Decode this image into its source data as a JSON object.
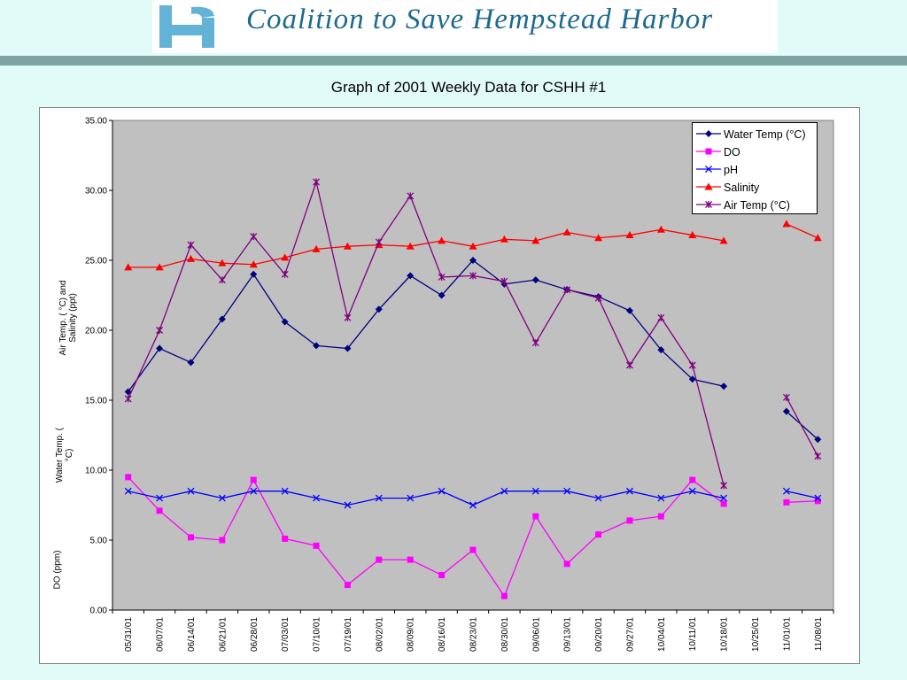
{
  "header": {
    "org_name": "Coalition to Save Hempstead Harbor",
    "logo_icon": "hempstead-h-logo-icon"
  },
  "slide": {
    "title": "Graph of 2001 Weekly Data for CSHH #1"
  },
  "chart_data": {
    "type": "line",
    "title": "",
    "ylabel_sections": [
      "Air Temp. ( °C) and Salinity (ppt)",
      "Water Temp. ( °C)",
      "DO (ppm)"
    ],
    "ylim": [
      0,
      35
    ],
    "y_ticks": [
      "0.00",
      "5.00",
      "10.00",
      "15.00",
      "20.00",
      "25.00",
      "30.00",
      "35.00"
    ],
    "categories": [
      "05/31/01",
      "06/07/01",
      "06/14/01",
      "06/21/01",
      "06/28/01",
      "07/03/01",
      "07/10/01",
      "07/19/01",
      "08/02/01",
      "08/09/01",
      "08/16/01",
      "08/23/01",
      "08/30/01",
      "09/06/01",
      "09/13/01",
      "09/20/01",
      "09/27/01",
      "10/04/01",
      "10/11/01",
      "10/18/01",
      "10/25/01",
      "11/01/01",
      "11/08/01"
    ],
    "grid": false,
    "plot_background": "#c0c0c0",
    "legend_position": "top-right",
    "series": [
      {
        "name": "Water Temp (°C)",
        "color": "#000080",
        "marker": "diamond",
        "values": [
          15.6,
          18.7,
          17.7,
          20.8,
          24.0,
          20.6,
          18.9,
          18.7,
          21.5,
          23.9,
          22.5,
          25.0,
          23.3,
          23.6,
          22.9,
          22.4,
          21.4,
          18.6,
          16.5,
          16.0,
          null,
          14.2,
          12.2
        ]
      },
      {
        "name": "DO",
        "color": "#ff00ff",
        "marker": "square",
        "values": [
          9.5,
          7.1,
          5.2,
          5.0,
          9.3,
          5.1,
          4.6,
          1.8,
          3.6,
          3.6,
          2.5,
          4.3,
          1.0,
          6.7,
          3.3,
          5.4,
          6.4,
          6.7,
          9.3,
          7.6,
          null,
          7.7,
          7.8
        ]
      },
      {
        "name": "pH",
        "color": "#0000ff",
        "marker": "x",
        "values": [
          8.5,
          8.0,
          8.5,
          8.0,
          8.5,
          8.5,
          8.0,
          7.5,
          8.0,
          8.0,
          8.5,
          7.5,
          8.5,
          8.5,
          8.5,
          8.0,
          8.5,
          8.0,
          8.5,
          8.0,
          null,
          8.5,
          8.0
        ]
      },
      {
        "name": "Salinity",
        "color": "#ff0000",
        "marker": "triangle",
        "values": [
          24.5,
          24.5,
          25.1,
          24.8,
          24.7,
          25.2,
          25.8,
          26.0,
          26.1,
          26.0,
          26.4,
          26.0,
          26.5,
          26.4,
          27.0,
          26.6,
          26.8,
          27.2,
          26.8,
          26.4,
          null,
          27.6,
          26.6
        ]
      },
      {
        "name": "Air Temp (°C)",
        "color": "#800080",
        "marker": "star",
        "values": [
          15.1,
          20.0,
          26.1,
          23.6,
          26.7,
          24.0,
          30.6,
          20.9,
          26.3,
          29.6,
          23.8,
          23.9,
          23.5,
          19.1,
          22.9,
          22.3,
          17.5,
          20.9,
          17.5,
          8.9,
          null,
          15.2,
          11.0
        ]
      }
    ]
  }
}
